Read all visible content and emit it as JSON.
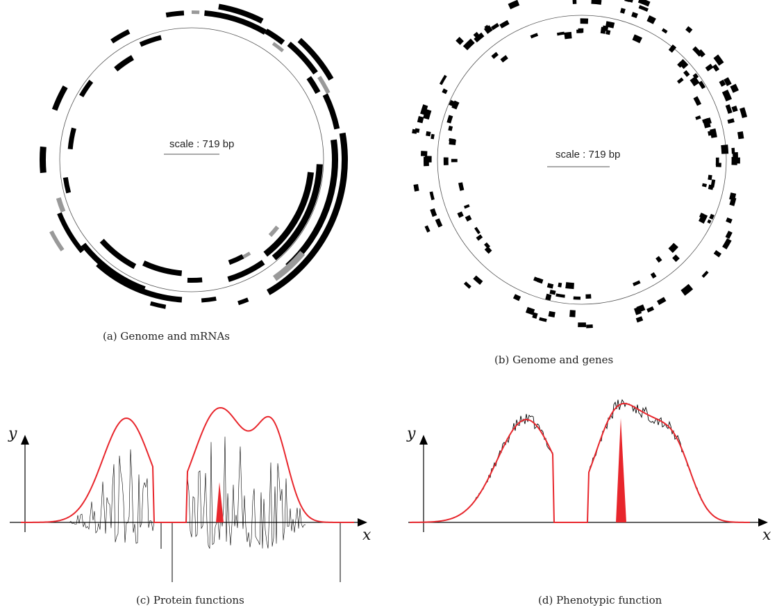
{
  "panel_a": {
    "caption": "(a) Genome and mRNAs",
    "scale_label": "scale : 719 bp"
  },
  "panel_b": {
    "caption": "(b) Genome and genes",
    "scale_label": "scale : 719 bp"
  },
  "panel_c": {
    "caption": "(c) Protein functions",
    "y_axis": "y",
    "x_axis": "x"
  },
  "panel_d": {
    "caption": "(d) Phenotypic function",
    "y_axis": "y",
    "x_axis": "x"
  },
  "colors": {
    "feature": "#000000",
    "minor_feature": "#999999",
    "curve": "#e8262c",
    "line": "#000000"
  }
}
